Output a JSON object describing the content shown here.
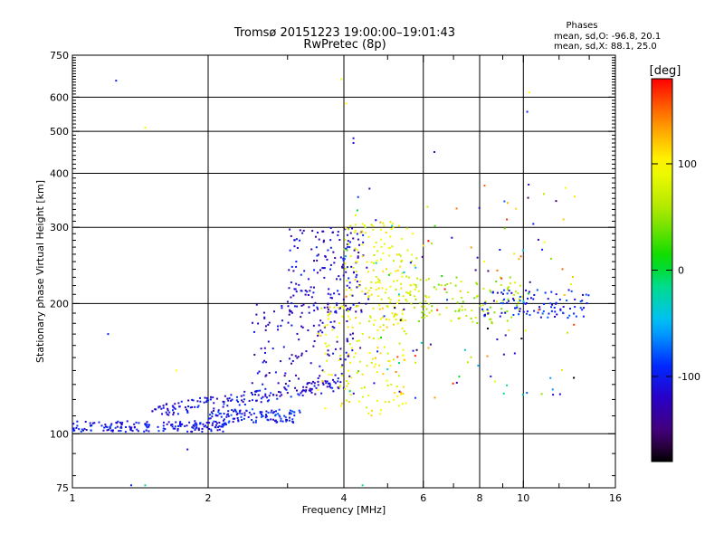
{
  "header": {
    "title_line1": "Tromsø 20151223 19:00:00–19:01:43",
    "title_line2": "RwPretec (8p)",
    "stats_title": "Phases",
    "stats_o": "mean, sd,O: -96.8, 20.1",
    "stats_x": "mean, sd,X:  88.1, 25.0"
  },
  "colorbar": {
    "unit_label": "[deg]",
    "tick_labels": [
      "100",
      "0",
      "-100"
    ],
    "tick_values": [
      100,
      0,
      -100
    ],
    "range": [
      -180,
      180
    ]
  },
  "chart_data": {
    "type": "scatter",
    "title": "Tromsø 20151223 19:00:00–19:01:43",
    "subtitle": "RwPretec (8p)",
    "xlabel": "Frequency [MHz]",
    "ylabel": "Stationary phase Virtual Height [km]",
    "x_scale": "log",
    "y_scale": "log",
    "xlim": [
      1,
      16
    ],
    "ylim": [
      75,
      750
    ],
    "x_ticks": [
      1,
      2,
      4,
      6,
      8,
      10,
      16
    ],
    "x_tick_labels": [
      "1",
      "2",
      "4",
      "6",
      "8",
      "10",
      "16"
    ],
    "x_minor_ticks": [
      3,
      5,
      7,
      9
    ],
    "y_ticks": [
      75,
      100,
      200,
      300,
      400,
      500,
      600,
      750
    ],
    "y_tick_labels": [
      "75",
      "100",
      "200",
      "300",
      "400",
      "500",
      "600",
      "750"
    ],
    "grid_x": [
      2,
      4,
      6,
      8,
      10
    ],
    "grid_y": [
      100,
      200,
      300,
      400,
      500,
      600
    ],
    "color_scale": "rainbow phase, -180 (black) to 180 (red) deg",
    "point_groups": [
      {
        "x_range": [
          1.0,
          2.2
        ],
        "y_range": [
          101,
          107
        ],
        "phase": -105,
        "count": 170,
        "note": "O-trace low E region"
      },
      {
        "x_range": [
          2.0,
          3.2
        ],
        "y_range": [
          106,
          114
        ],
        "phase": -100,
        "count": 120
      },
      {
        "x_range": [
          1.5,
          4.0
        ],
        "y_range": [
          112,
          130
        ],
        "phase": -110,
        "count": 170,
        "note": "X-trace"
      },
      {
        "x_range": [
          2.5,
          4.2
        ],
        "y_range": [
          130,
          200
        ],
        "phase": -120,
        "count": 130
      },
      {
        "x_range": [
          3.0,
          4.5
        ],
        "y_range": [
          190,
          300
        ],
        "phase": -115,
        "count": 170,
        "note": "F-region O"
      },
      {
        "x_range": [
          3.5,
          5.5
        ],
        "y_range": [
          110,
          200
        ],
        "phase": 95,
        "count": 160,
        "note": "X-mode cluster"
      },
      {
        "x_range": [
          4.0,
          5.8
        ],
        "y_range": [
          200,
          310
        ],
        "phase": 90,
        "count": 130
      },
      {
        "x_range": [
          5.5,
          10.0
        ],
        "y_range": [
          180,
          230
        ],
        "phase": 60,
        "count": 110
      },
      {
        "x_range": [
          8.0,
          14.0
        ],
        "y_range": [
          185,
          215
        ],
        "phase": -100,
        "count": 100,
        "note": "High-frequency trace"
      },
      {
        "x_range": [
          4.0,
          13.0
        ],
        "y_range": [
          120,
          380
        ],
        "phase": 0,
        "count": 140,
        "note": "Scattered mixed phases"
      }
    ],
    "outliers": [
      {
        "x": 1.25,
        "y": 655,
        "phase": -100
      },
      {
        "x": 1.45,
        "y": 510,
        "phase": 95
      },
      {
        "x": 3.95,
        "y": 660,
        "phase": 90
      },
      {
        "x": 4.05,
        "y": 580,
        "phase": 100
      },
      {
        "x": 4.2,
        "y": 482,
        "phase": -110
      },
      {
        "x": 4.2,
        "y": 470,
        "phase": -110
      },
      {
        "x": 6.35,
        "y": 448,
        "phase": -110
      },
      {
        "x": 10.2,
        "y": 555,
        "phase": -100
      },
      {
        "x": 10.3,
        "y": 615,
        "phase": 100
      },
      {
        "x": 12.4,
        "y": 370,
        "phase": 95
      },
      {
        "x": 1.35,
        "y": 76,
        "phase": -100
      },
      {
        "x": 1.45,
        "y": 76,
        "phase": -20
      },
      {
        "x": 1.8,
        "y": 92,
        "phase": -120
      },
      {
        "x": 1.2,
        "y": 170,
        "phase": -100
      },
      {
        "x": 1.7,
        "y": 140,
        "phase": 100
      },
      {
        "x": 4.4,
        "y": 76,
        "phase": -20
      }
    ]
  }
}
